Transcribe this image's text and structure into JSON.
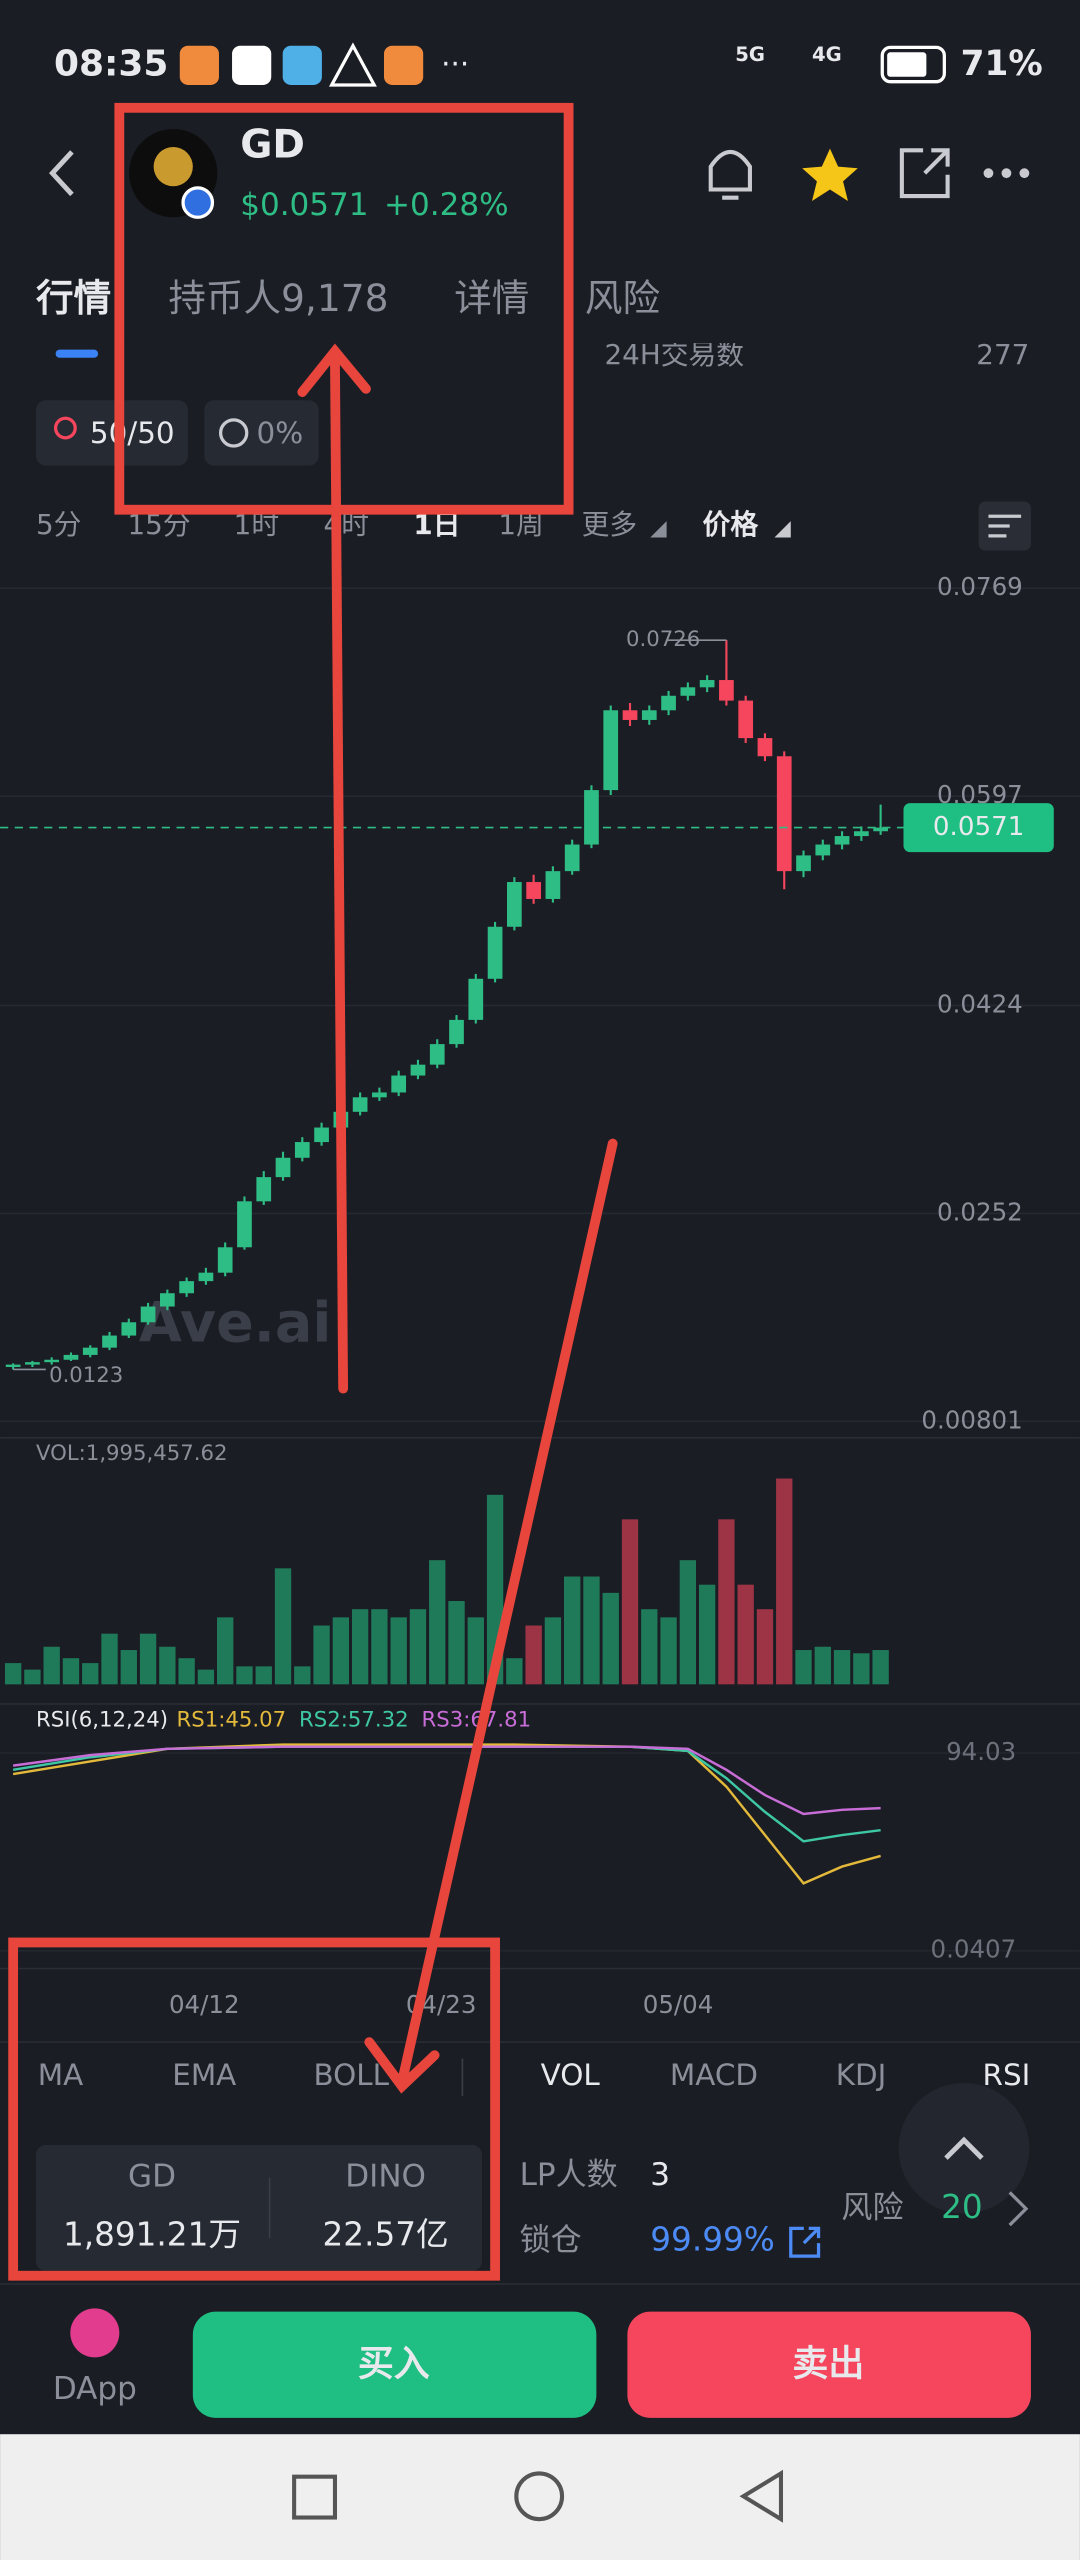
{
  "status_bar": {
    "time": "08:35",
    "net1": "5G",
    "net2": "4G",
    "battery": "71%"
  },
  "header": {
    "symbol": "GD",
    "price": "$0.0571",
    "change": "+0.28%"
  },
  "tabs": [
    "行情",
    "持币人9,178",
    "详情",
    "风险"
  ],
  "stats_row": {
    "label": "24H交易数",
    "value": "277"
  },
  "chips": [
    "50/50",
    "0%"
  ],
  "intervals": [
    "5分",
    "15分",
    "1时",
    "4时",
    "1日",
    "1周",
    "更多",
    "价格"
  ],
  "chart": {
    "type": "candlestick",
    "ylim": [
      0.00801,
      0.0769
    ],
    "yticks": [
      0.0769,
      0.0597,
      0.0424,
      0.0252,
      0.00801
    ],
    "last_price": 0.0571,
    "high_label": 0.0726,
    "low_label": 0.0123,
    "watermark": "Ave.ai",
    "candles": [
      [
        0.0125,
        0.0128,
        0.0123,
        0.0127
      ],
      [
        0.0127,
        0.013,
        0.0125,
        0.0129
      ],
      [
        0.0129,
        0.0133,
        0.0127,
        0.0131
      ],
      [
        0.0131,
        0.0137,
        0.013,
        0.0135
      ],
      [
        0.0135,
        0.0143,
        0.0133,
        0.0141
      ],
      [
        0.0141,
        0.0154,
        0.0139,
        0.0151
      ],
      [
        0.0151,
        0.0165,
        0.0149,
        0.0162
      ],
      [
        0.0162,
        0.0178,
        0.016,
        0.0175
      ],
      [
        0.0175,
        0.0189,
        0.0172,
        0.0186
      ],
      [
        0.0186,
        0.0199,
        0.0183,
        0.0196
      ],
      [
        0.0196,
        0.0207,
        0.0193,
        0.0203
      ],
      [
        0.0203,
        0.0228,
        0.02,
        0.0224
      ],
      [
        0.0224,
        0.0266,
        0.0222,
        0.0262
      ],
      [
        0.0262,
        0.0287,
        0.0259,
        0.0282
      ],
      [
        0.0282,
        0.0303,
        0.0279,
        0.0298
      ],
      [
        0.0298,
        0.0315,
        0.0295,
        0.0311
      ],
      [
        0.0311,
        0.0327,
        0.0308,
        0.0323
      ],
      [
        0.0323,
        0.034,
        0.032,
        0.0336
      ],
      [
        0.0336,
        0.0352,
        0.0333,
        0.0348
      ],
      [
        0.0348,
        0.0356,
        0.0345,
        0.0352
      ],
      [
        0.0352,
        0.037,
        0.0349,
        0.0366
      ],
      [
        0.0366,
        0.0379,
        0.0363,
        0.0375
      ],
      [
        0.0375,
        0.0396,
        0.0372,
        0.0392
      ],
      [
        0.0392,
        0.0416,
        0.0389,
        0.0412
      ],
      [
        0.0412,
        0.045,
        0.0409,
        0.0446
      ],
      [
        0.0446,
        0.0493,
        0.0443,
        0.0489
      ],
      [
        0.0489,
        0.053,
        0.0486,
        0.0526
      ],
      [
        0.0526,
        0.0532,
        0.0508,
        0.0512
      ],
      [
        0.0512,
        0.0539,
        0.0509,
        0.0535
      ],
      [
        0.0535,
        0.0561,
        0.0532,
        0.0557
      ],
      [
        0.0557,
        0.0606,
        0.0554,
        0.0602
      ],
      [
        0.0602,
        0.0672,
        0.0598,
        0.0668
      ],
      [
        0.0668,
        0.0674,
        0.0655,
        0.066
      ],
      [
        0.066,
        0.0672,
        0.0656,
        0.0668
      ],
      [
        0.0668,
        0.0684,
        0.0664,
        0.068
      ],
      [
        0.068,
        0.0691,
        0.0676,
        0.0687
      ],
      [
        0.0687,
        0.0697,
        0.0683,
        0.0693
      ],
      [
        0.0693,
        0.0726,
        0.0672,
        0.0676
      ],
      [
        0.0676,
        0.068,
        0.0641,
        0.0645
      ],
      [
        0.0645,
        0.0649,
        0.0626,
        0.063
      ],
      [
        0.063,
        0.0634,
        0.052,
        0.0535
      ],
      [
        0.0535,
        0.0552,
        0.053,
        0.0548
      ],
      [
        0.0548,
        0.0561,
        0.0544,
        0.0557
      ],
      [
        0.0557,
        0.0568,
        0.0553,
        0.0564
      ],
      [
        0.0564,
        0.0572,
        0.056,
        0.0568
      ],
      [
        0.0568,
        0.059,
        0.0565,
        0.0571
      ]
    ],
    "volume_label": "VOL:1,995,457.62",
    "volumes": [
      13,
      9,
      23,
      16,
      13,
      31,
      21,
      31,
      23,
      16,
      9,
      41,
      11,
      11,
      71,
      11,
      36,
      41,
      46,
      46,
      41,
      46,
      76,
      51,
      41,
      116,
      16,
      36,
      41,
      66,
      66,
      56,
      101,
      46,
      41,
      76,
      61,
      101,
      61,
      46,
      126,
      21,
      23,
      21,
      19,
      21
    ],
    "rsi_label": "RSI(6,12,24)",
    "rsi_legend": [
      "RS1:45.07",
      "RS2:57.32",
      "RS3:67.81"
    ],
    "rsi_ylim": [
      0.0407,
      94.03
    ],
    "rsi_yticks": [
      94.03,
      0.0407
    ],
    "rsi_x": [
      0,
      4,
      8,
      14,
      20,
      26,
      32,
      35,
      37,
      39,
      41,
      43,
      45
    ],
    "rsi_series": [
      {
        "color": "#e2b93b",
        "values": [
          84,
          90,
          96,
          98,
          98,
          98,
          97,
          95,
          78,
          55,
          32,
          40,
          45.07
        ]
      },
      {
        "color": "#3ec7a4",
        "values": [
          86,
          92,
          96,
          97,
          97,
          97,
          97,
          95,
          82,
          66,
          52,
          55,
          57.32
        ]
      },
      {
        "color": "#c86dd7",
        "values": [
          88,
          93,
          96,
          97,
          97,
          97,
          97,
          96,
          86,
          74,
          65,
          67,
          67.81
        ]
      }
    ],
    "dates": [
      "04/12",
      "04/23",
      "05/04"
    ]
  },
  "indicators": [
    "MA",
    "EMA",
    "BOLL",
    "VOL",
    "MACD",
    "KDJ",
    "RSI"
  ],
  "pool": {
    "token1": "GD",
    "amount1": "1,891.21万",
    "token2": "DINO",
    "amount2": "22.57亿",
    "lp_label": "LP人数",
    "lp_value": "3",
    "lock_label": "锁仓",
    "lock_value": "99.99%",
    "risk_label": "风险",
    "risk_value": "20"
  },
  "bottom_bar": {
    "dapp": "DApp",
    "buy": "买入",
    "sell": "卖出"
  }
}
